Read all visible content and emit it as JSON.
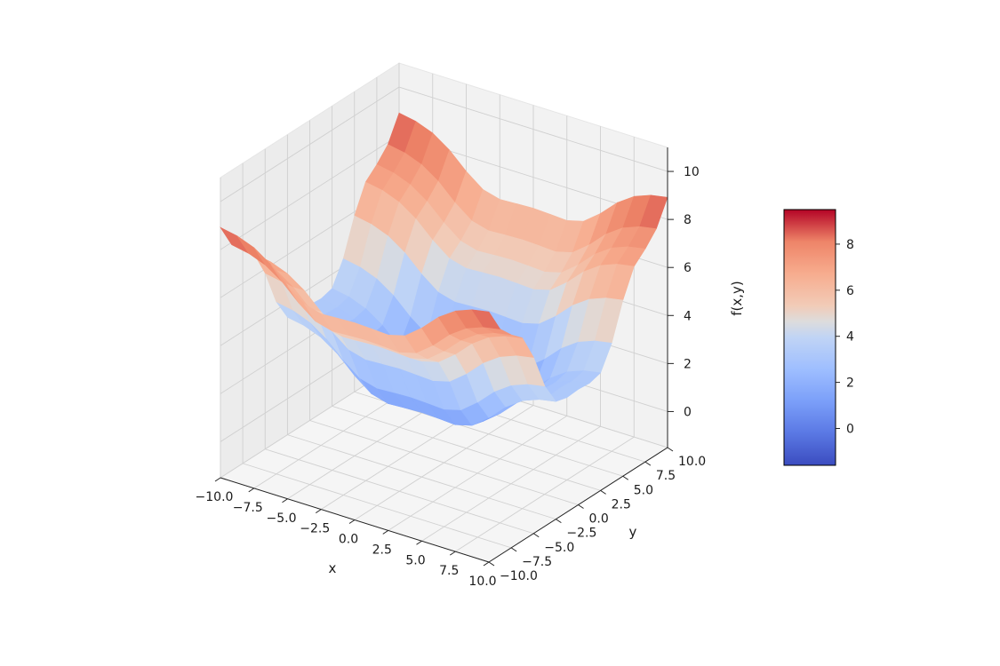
{
  "chart_data": {
    "type": "surface3d",
    "title": "",
    "xlabel": "x",
    "ylabel": "y",
    "zlabel": "f(x,y)",
    "xlim": [
      -10,
      10
    ],
    "ylim": [
      -10,
      10
    ],
    "zlim": [
      -1.5,
      11
    ],
    "x_ticks": [
      "−10.0",
      "−7.5",
      "−5.0",
      "−2.5",
      "0.0",
      "2.5",
      "5.0",
      "7.5",
      "10.0"
    ],
    "y_ticks": [
      "−10.0",
      "−7.5",
      "−5.0",
      "−2.5",
      "0.0",
      "2.5",
      "5.0",
      "7.5",
      "10.0"
    ],
    "z_ticks": [
      "0",
      "2",
      "4",
      "6",
      "8",
      "10"
    ],
    "x_tick_values": [
      -10,
      -7.5,
      -5,
      -2.5,
      0,
      2.5,
      5,
      7.5,
      10
    ],
    "y_tick_values": [
      -10,
      -7.5,
      -5,
      -2.5,
      0,
      2.5,
      5,
      7.5,
      10
    ],
    "z_tick_values": [
      0,
      2,
      4,
      6,
      8,
      10
    ],
    "colormap": "coolwarm",
    "colorbar": {
      "range": [
        -1.6,
        9.5
      ],
      "ticks": [
        "0",
        "2",
        "4",
        "6",
        "8"
      ],
      "tick_values": [
        0,
        2,
        4,
        6,
        8
      ]
    },
    "grid": true,
    "surface_grid": {
      "x": [
        -10,
        -8.75,
        -7.5,
        -6.25,
        -5,
        -3.75,
        -2.5,
        -1.25,
        0,
        1.25,
        2.5,
        3.75,
        5,
        6.25,
        7.5,
        8.75,
        10
      ],
      "y": [
        -10,
        -8.75,
        -7.5,
        -6.25,
        -5,
        -3.75,
        -2.5,
        -1.25,
        0,
        1.25,
        2.5,
        3.75,
        5,
        6.25,
        7.5,
        8.75,
        10
      ],
      "z": [
        [
          8.92,
          8.79,
          8.52,
          8.04,
          7.37,
          6.83,
          6.64,
          6.68,
          6.71,
          6.68,
          6.64,
          6.83,
          7.37,
          8.04,
          8.52,
          8.79,
          8.92
        ],
        [
          7.91,
          7.78,
          7.51,
          7.03,
          6.36,
          5.82,
          5.63,
          5.67,
          5.7,
          5.67,
          5.63,
          5.82,
          6.36,
          7.03,
          7.51,
          7.78,
          7.91
        ],
        [
          7.37,
          7.24,
          6.97,
          6.49,
          5.82,
          5.28,
          5.09,
          5.13,
          5.16,
          5.13,
          5.09,
          5.28,
          5.82,
          6.49,
          6.97,
          7.24,
          7.37
        ],
        [
          6.94,
          6.81,
          6.54,
          6.06,
          5.39,
          4.85,
          4.66,
          4.7,
          4.73,
          4.7,
          4.66,
          4.85,
          5.39,
          6.06,
          6.54,
          6.81,
          6.94
        ],
        [
          5.83,
          5.7,
          5.43,
          4.95,
          4.28,
          3.74,
          3.55,
          3.59,
          3.62,
          3.59,
          3.55,
          3.74,
          4.28,
          4.95,
          5.43,
          5.7,
          5.83
        ],
        [
          4.34,
          4.21,
          3.94,
          3.46,
          2.79,
          2.25,
          2.06,
          2.1,
          2.13,
          2.1,
          2.06,
          2.25,
          2.79,
          3.46,
          3.94,
          4.21,
          4.34
        ],
        [
          3.4,
          3.27,
          3.0,
          2.52,
          1.85,
          1.31,
          1.12,
          1.16,
          1.19,
          1.16,
          1.12,
          1.31,
          1.85,
          2.52,
          3.0,
          3.27,
          3.4
        ],
        [
          3.27,
          3.14,
          2.87,
          2.39,
          1.72,
          1.18,
          0.99,
          1.03,
          1.06,
          1.03,
          0.99,
          1.18,
          1.72,
          2.39,
          2.87,
          3.14,
          3.27
        ],
        [
          3.31,
          3.18,
          2.91,
          2.43,
          1.76,
          1.22,
          1.03,
          1.07,
          1.1,
          1.07,
          1.03,
          1.22,
          1.76,
          2.43,
          2.91,
          3.18,
          3.31
        ],
        [
          3.27,
          3.14,
          2.87,
          2.39,
          1.72,
          1.18,
          0.99,
          1.03,
          1.06,
          1.03,
          0.99,
          1.18,
          1.72,
          2.39,
          2.87,
          3.14,
          3.27
        ],
        [
          3.4,
          3.27,
          3.0,
          2.52,
          1.85,
          1.31,
          1.12,
          1.16,
          1.19,
          1.16,
          1.12,
          1.31,
          1.85,
          2.52,
          3.0,
          3.27,
          3.4
        ],
        [
          4.34,
          4.21,
          3.94,
          3.46,
          2.79,
          2.25,
          2.06,
          2.1,
          2.13,
          2.1,
          2.06,
          2.25,
          2.79,
          3.46,
          3.94,
          4.21,
          4.34
        ],
        [
          5.83,
          5.7,
          5.43,
          4.95,
          4.28,
          3.74,
          3.55,
          3.59,
          3.62,
          3.59,
          3.55,
          3.74,
          4.28,
          4.95,
          5.43,
          5.7,
          5.83
        ],
        [
          6.94,
          6.81,
          6.54,
          6.06,
          5.39,
          4.85,
          4.66,
          4.7,
          4.73,
          4.7,
          4.66,
          4.85,
          5.39,
          6.06,
          6.54,
          6.81,
          6.94
        ],
        [
          7.37,
          7.24,
          6.97,
          6.49,
          5.82,
          5.28,
          5.09,
          5.13,
          5.16,
          5.13,
          5.09,
          5.28,
          5.82,
          6.49,
          6.97,
          7.24,
          7.37
        ],
        [
          7.91,
          7.78,
          7.51,
          7.03,
          6.36,
          5.82,
          5.63,
          5.67,
          5.7,
          5.67,
          5.63,
          5.82,
          6.36,
          7.03,
          7.51,
          7.78,
          7.91
        ],
        [
          8.92,
          8.79,
          8.52,
          8.04,
          7.37,
          6.83,
          6.64,
          6.68,
          6.71,
          6.68,
          6.64,
          6.83,
          7.37,
          8.04,
          8.52,
          8.79,
          8.92
        ]
      ]
    }
  }
}
